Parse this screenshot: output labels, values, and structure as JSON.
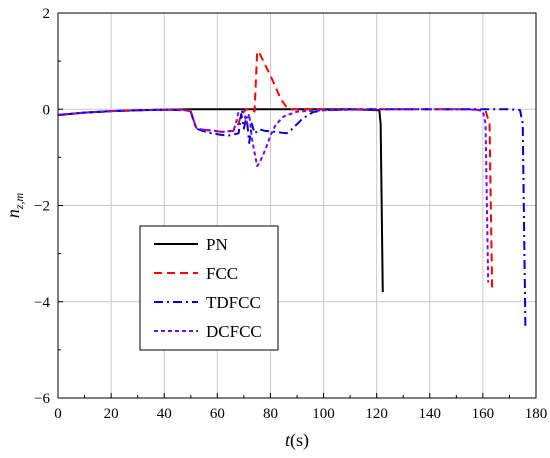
{
  "chart_data": {
    "type": "line",
    "title": "",
    "xlabel_var": "t",
    "xlabel_unit": "(s)",
    "ylabel_var": "n",
    "ylabel_sub": "z,m",
    "xlim": [
      0,
      180
    ],
    "ylim": [
      -6,
      2
    ],
    "xticks": [
      0,
      20,
      40,
      60,
      80,
      100,
      120,
      140,
      160,
      180
    ],
    "yticks": [
      -6,
      -4,
      -2,
      0,
      2
    ],
    "grid": true,
    "legend_position": "bottom-left",
    "series": [
      {
        "name": "PN",
        "color": "#000000",
        "dash": "solid",
        "points": [
          [
            0,
            -0.12
          ],
          [
            10,
            -0.07
          ],
          [
            20,
            -0.04
          ],
          [
            30,
            -0.02
          ],
          [
            40,
            -0.01
          ],
          [
            50,
            0
          ],
          [
            70,
            0
          ],
          [
            90,
            0
          ],
          [
            110,
            0
          ],
          [
            121,
            -0.02
          ],
          [
            121.5,
            -0.3
          ],
          [
            122.3,
            -3.8
          ]
        ]
      },
      {
        "name": "FCC",
        "color": "#ff0000",
        "dash": "long",
        "points": [
          [
            0,
            -0.12
          ],
          [
            10,
            -0.07
          ],
          [
            20,
            -0.04
          ],
          [
            30,
            -0.02
          ],
          [
            40,
            -0.01
          ],
          [
            48,
            -0.01
          ],
          [
            50,
            -0.05
          ],
          [
            52,
            -0.38
          ],
          [
            54,
            -0.42
          ],
          [
            58,
            -0.45
          ],
          [
            62,
            -0.47
          ],
          [
            66,
            -0.45
          ],
          [
            68,
            -0.3
          ],
          [
            69,
            -0.1
          ],
          [
            71,
            0
          ],
          [
            73,
            0
          ],
          [
            74,
            -0.05
          ],
          [
            75,
            1.2
          ],
          [
            76,
            1.15
          ],
          [
            80,
            0.7
          ],
          [
            84,
            0.2
          ],
          [
            86,
            0.05
          ],
          [
            88,
            0
          ],
          [
            100,
            0
          ],
          [
            120,
            0
          ],
          [
            140,
            0
          ],
          [
            155,
            0
          ],
          [
            161,
            -0.03
          ],
          [
            162.5,
            -0.3
          ],
          [
            163.5,
            -3.8
          ]
        ]
      },
      {
        "name": "TDFCC",
        "color": "#0000cd",
        "dash": "dashdot",
        "points": [
          [
            0,
            -0.12
          ],
          [
            10,
            -0.07
          ],
          [
            20,
            -0.04
          ],
          [
            30,
            -0.02
          ],
          [
            40,
            -0.01
          ],
          [
            48,
            -0.02
          ],
          [
            50,
            -0.05
          ],
          [
            52,
            -0.4
          ],
          [
            56,
            -0.48
          ],
          [
            60,
            -0.52
          ],
          [
            64,
            -0.55
          ],
          [
            68,
            -0.5
          ],
          [
            69,
            -0.1
          ],
          [
            70,
            -0.4
          ],
          [
            71,
            -0.15
          ],
          [
            72,
            -0.7
          ],
          [
            73,
            -0.3
          ],
          [
            74,
            -0.5
          ],
          [
            76,
            -0.42
          ],
          [
            78,
            -0.45
          ],
          [
            82,
            -0.47
          ],
          [
            86,
            -0.5
          ],
          [
            88,
            -0.42
          ],
          [
            92,
            -0.2
          ],
          [
            96,
            -0.06
          ],
          [
            100,
            -0.02
          ],
          [
            110,
            0
          ],
          [
            140,
            0
          ],
          [
            160,
            0
          ],
          [
            170,
            0
          ],
          [
            174,
            -0.02
          ],
          [
            175,
            -0.3
          ],
          [
            176,
            -4.5
          ]
        ]
      },
      {
        "name": "DCFCC",
        "color": "#6a0dff",
        "dash": "short",
        "points": [
          [
            0,
            -0.12
          ],
          [
            10,
            -0.07
          ],
          [
            20,
            -0.04
          ],
          [
            30,
            -0.02
          ],
          [
            40,
            -0.01
          ],
          [
            48,
            -0.02
          ],
          [
            50,
            -0.05
          ],
          [
            52,
            -0.38
          ],
          [
            54,
            -0.42
          ],
          [
            58,
            -0.44
          ],
          [
            62,
            -0.47
          ],
          [
            66,
            -0.45
          ],
          [
            67,
            -0.3
          ],
          [
            68,
            -0.05
          ],
          [
            70,
            -0.05
          ],
          [
            71,
            -0.3
          ],
          [
            72,
            -0.1
          ],
          [
            73,
            -0.6
          ],
          [
            74,
            -0.9
          ],
          [
            75,
            -1.18
          ],
          [
            76,
            -1.1
          ],
          [
            78,
            -0.85
          ],
          [
            80,
            -0.55
          ],
          [
            82,
            -0.32
          ],
          [
            85,
            -0.15
          ],
          [
            90,
            -0.05
          ],
          [
            100,
            -0.02
          ],
          [
            120,
            0
          ],
          [
            150,
            0
          ],
          [
            158,
            -0.01
          ],
          [
            160,
            -0.05
          ],
          [
            161,
            -0.3
          ],
          [
            162,
            -3.6
          ]
        ]
      }
    ]
  }
}
